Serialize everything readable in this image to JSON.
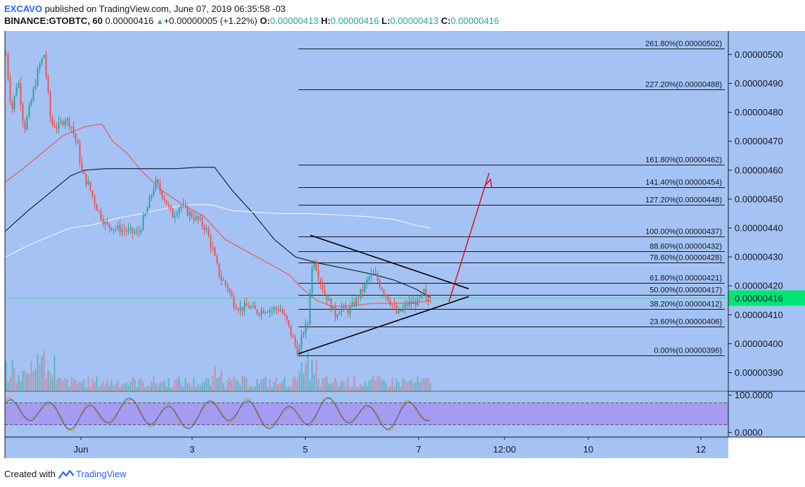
{
  "header": {
    "author": "EXCAVO",
    "published": "published on TradingView.com, June 07, 2019 06:35:58 -03",
    "symbol": "BINANCE:GTOBTC, 60",
    "last": "0.00000416",
    "change": "+0.00000005 (+1.22%)",
    "o_label": "O:",
    "o": "0.00000413",
    "h_label": "H:",
    "h": "0.00000416",
    "l_label": "L:",
    "l": "0.00000413",
    "c_label": "C:",
    "c": "0.00000416"
  },
  "footer": {
    "created_with": "Created with",
    "brand": "TradingView"
  },
  "colors": {
    "background": "#a4c2f4",
    "up": "#26a69a",
    "down": "#ef5350",
    "price_tag": "#00e676",
    "rsi_band": "#a59cf2",
    "ma_red": "#ef5350",
    "ma_black": "#131722",
    "ma_white": "#f4f4ff",
    "arrow": "#e0101a"
  },
  "chart_data": [
    {
      "type": "candlestick",
      "title": "BINANCE:GTOBTC, 60",
      "xlabel": "",
      "ylabel": "",
      "ylim": [
        3.855e-06,
        5.185e-06
      ],
      "y_ticks": [
        {
          "v": 3.9e-06,
          "label": "0.00000390"
        },
        {
          "v": 4e-06,
          "label": "0.00000400"
        },
        {
          "v": 4.1e-06,
          "label": "0.00000410"
        },
        {
          "v": 4.2e-06,
          "label": "0.00000420"
        },
        {
          "v": 4.3e-06,
          "label": "0.00000430"
        },
        {
          "v": 4.4e-06,
          "label": "0.00000440"
        },
        {
          "v": 4.5e-06,
          "label": "0.00000450"
        },
        {
          "v": 4.6e-06,
          "label": "0.00000460"
        },
        {
          "v": 4.7e-06,
          "label": "0.00000470"
        },
        {
          "v": 4.8e-06,
          "label": "0.00000480"
        },
        {
          "v": 4.9e-06,
          "label": "0.00000490"
        },
        {
          "v": 5e-06,
          "label": "0.00000500"
        }
      ],
      "x_ticks": [
        "Jun",
        "3",
        "5",
        "7",
        "12:00",
        "10",
        "12"
      ],
      "current_price": {
        "v": 4.16e-06,
        "label": "0.00000416"
      },
      "grid": false,
      "fibonacci": [
        {
          "ratio": "261.80%",
          "v": 5.02e-06,
          "label": "261.80%(0.00000502)"
        },
        {
          "ratio": "227.20%",
          "v": 4.88e-06,
          "label": "227.20%(0.00000488)"
        },
        {
          "ratio": "161.80%",
          "v": 4.62e-06,
          "label": "161.80%(0.00000462)"
        },
        {
          "ratio": "141.40%",
          "v": 4.54e-06,
          "label": "141.40%(0.00000454)"
        },
        {
          "ratio": "127.20%",
          "v": 4.48e-06,
          "label": "127.20%(0.00000448)"
        },
        {
          "ratio": "100.00%",
          "v": 4.37e-06,
          "label": "100.00%(0.00000437)"
        },
        {
          "ratio": "88.60%",
          "v": 4.32e-06,
          "label": "88.60%(0.00000432)"
        },
        {
          "ratio": "78.60%",
          "v": 4.28e-06,
          "label": "78.60%(0.00000428)"
        },
        {
          "ratio": "61.80%",
          "v": 4.21e-06,
          "label": "61.80%(0.00000421)"
        },
        {
          "ratio": "50.00%",
          "v": 4.17e-06,
          "label": "50.00%(0.00000417)"
        },
        {
          "ratio": "38.20%",
          "v": 4.12e-06,
          "label": "38.20%(0.00000412)"
        },
        {
          "ratio": "23.60%",
          "v": 4.06e-06,
          "label": "23.60%(0.00000406)"
        },
        {
          "ratio": "0.00%",
          "v": 3.96e-06,
          "label": "0.00%(0.00000396)"
        }
      ],
      "patterns": [
        "symmetrical triangle",
        "breakout projection arrow"
      ],
      "moving_averages": [
        "red",
        "black",
        "white"
      ]
    },
    {
      "type": "line",
      "title": "",
      "ylim": [
        0,
        100
      ],
      "y_ticks": [
        {
          "v": 100,
          "label": "100.0000"
        },
        {
          "v": 0,
          "label": "0.0000"
        }
      ],
      "band": [
        20,
        80
      ]
    }
  ]
}
